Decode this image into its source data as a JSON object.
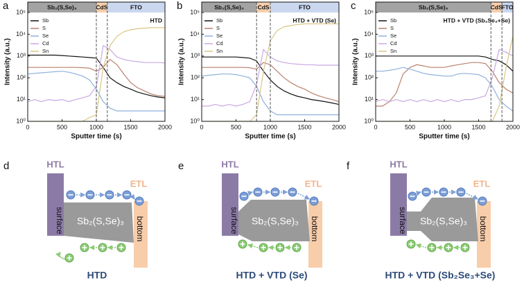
{
  "chart_data": [
    {
      "type": "line",
      "panel": "a",
      "annotation": "HTD",
      "log_y": true,
      "legend": "upper left",
      "xlabel": "Sputter time (s)",
      "ylabel": "Intensity (a.u.)",
      "regions": [
        {
          "label": "Sb₂(S,Se)₃",
          "start": 0,
          "end": 1000,
          "color": "#a3a3a3"
        },
        {
          "label": "CdS",
          "start": 1000,
          "end": 1160,
          "color": "#f6cfae"
        },
        {
          "label": "FTO",
          "start": 1160,
          "end": 2000,
          "color": "#cad7ef"
        }
      ],
      "xlim": [
        0,
        2000
      ],
      "xticks": [
        0,
        500,
        1000,
        1500,
        2000
      ],
      "ylim": [
        1,
        300000
      ],
      "yticks": [
        {
          "value": 1,
          "label": "10⁰"
        },
        {
          "value": 10,
          "label": "10¹"
        },
        {
          "value": 100,
          "label": "10²"
        },
        {
          "value": 1000,
          "label": "10³"
        },
        {
          "value": 10000,
          "label": "10⁴"
        },
        {
          "value": 100000,
          "label": "10⁵"
        }
      ],
      "x": [
        0,
        100,
        200,
        300,
        400,
        500,
        600,
        700,
        800,
        900,
        1000,
        1100,
        1200,
        1300,
        1400,
        1500,
        1600,
        1700,
        1800,
        1900,
        2000
      ],
      "series": [
        {
          "name": "Sb",
          "color": "#111111",
          "values": [
            1100,
            1100,
            1100,
            1100,
            1100,
            1050,
            1000,
            950,
            900,
            850,
            800,
            300,
            100,
            60,
            40,
            30,
            22,
            18,
            15,
            13,
            12
          ]
        },
        {
          "name": "S",
          "color": "#b9806c",
          "values": [
            300,
            300,
            300,
            300,
            300,
            300,
            300,
            300,
            290,
            280,
            200,
            300,
            700,
            400,
            150,
            60,
            35,
            25,
            18,
            15,
            14
          ]
        },
        {
          "name": "Se",
          "color": "#8fb0dc",
          "values": [
            150,
            160,
            170,
            180,
            190,
            200,
            180,
            150,
            120,
            80,
            30,
            8,
            4,
            3,
            3,
            3,
            3,
            3,
            3,
            3,
            3
          ]
        },
        {
          "name": "Cd",
          "color": "#c8a8e2",
          "values": [
            8,
            10,
            8,
            10,
            9,
            10,
            8,
            10,
            12,
            15,
            40,
            3000,
            2000,
            900,
            700,
            600,
            550,
            500,
            500,
            500,
            480
          ]
        },
        {
          "name": "Sn",
          "color": "#d8c684",
          "values": [
            1,
            1,
            1,
            1,
            1,
            1,
            1,
            1,
            1,
            1.5,
            2,
            300,
            3000,
            8000,
            13000,
            16000,
            18000,
            19000,
            20000,
            20000,
            20000
          ]
        }
      ]
    },
    {
      "type": "line",
      "panel": "b",
      "annotation": "HTD + VTD (Se)",
      "log_y": true,
      "legend": "upper left",
      "xlabel": "Sputter time (s)",
      "ylabel": "Intensity (a.u.)",
      "regions": [
        {
          "label": "Sb₂(S,Se)₃",
          "start": 0,
          "end": 800,
          "color": "#a3a3a3"
        },
        {
          "label": "CdS",
          "start": 800,
          "end": 1000,
          "color": "#f6cfae"
        },
        {
          "label": "FTO",
          "start": 1000,
          "end": 2000,
          "color": "#cad7ef"
        }
      ],
      "xlim": [
        0,
        2000
      ],
      "xticks": [
        0,
        500,
        1000,
        1500,
        2000
      ],
      "ylim": [
        1,
        300000
      ],
      "yticks": [
        {
          "value": 1,
          "label": "10⁰"
        },
        {
          "value": 10,
          "label": "10¹"
        },
        {
          "value": 100,
          "label": "10²"
        },
        {
          "value": 1000,
          "label": "10³"
        },
        {
          "value": 10000,
          "label": "10⁴"
        },
        {
          "value": 100000,
          "label": "10⁵"
        }
      ],
      "x": [
        0,
        100,
        200,
        300,
        400,
        500,
        600,
        700,
        800,
        900,
        1000,
        1100,
        1200,
        1300,
        1400,
        1500,
        1600,
        1700,
        1800,
        1900,
        2000
      ],
      "series": [
        {
          "name": "Sb",
          "color": "#111111",
          "values": [
            900,
            900,
            900,
            900,
            900,
            900,
            850,
            800,
            600,
            200,
            80,
            40,
            25,
            18,
            14,
            12,
            10,
            9,
            8,
            7,
            6
          ]
        },
        {
          "name": "S",
          "color": "#b9806c",
          "values": [
            300,
            300,
            300,
            300,
            300,
            300,
            300,
            290,
            250,
            500,
            400,
            200,
            100,
            60,
            40,
            30,
            20,
            15,
            12,
            10,
            8
          ]
        },
        {
          "name": "Se",
          "color": "#8fb0dc",
          "values": [
            120,
            130,
            140,
            150,
            150,
            140,
            120,
            100,
            40,
            8,
            3,
            2,
            2,
            2,
            2,
            2,
            2,
            2,
            2,
            2,
            2
          ]
        },
        {
          "name": "Cd",
          "color": "#c8a8e2",
          "values": [
            5,
            5,
            6,
            5,
            6,
            5,
            6,
            8,
            50,
            2000,
            900,
            600,
            500,
            450,
            420,
            400,
            400,
            380,
            380,
            380,
            380
          ]
        },
        {
          "name": "Sn",
          "color": "#d8c684",
          "values": [
            1,
            1,
            1,
            1,
            1,
            1,
            1,
            1,
            2,
            200,
            5000,
            15000,
            22000,
            25000,
            28000,
            30000,
            30000,
            30000,
            30000,
            30000,
            30000
          ]
        }
      ]
    },
    {
      "type": "line",
      "panel": "c",
      "annotation": "HTD + VTD (Sb₂Se₃+Se)",
      "log_y": true,
      "legend": "upper left",
      "xlabel": "Sputter time (s)",
      "ylabel": "Intensity (a.u.)",
      "regions": [
        {
          "label": "Sb₂(S,Se)₃",
          "start": 0,
          "end": 1680,
          "color": "#a3a3a3"
        },
        {
          "label": "CdS",
          "start": 1680,
          "end": 1840,
          "color": "#f6cfae"
        },
        {
          "label": "FTO",
          "start": 1840,
          "end": 2000,
          "color": "#cad7ef"
        }
      ],
      "xlim": [
        0,
        2000
      ],
      "xticks": [
        0,
        500,
        1000,
        1500,
        2000
      ],
      "ylim": [
        1,
        300000
      ],
      "yticks": [
        {
          "value": 1,
          "label": "10⁰"
        },
        {
          "value": 10,
          "label": "10¹"
        },
        {
          "value": 100,
          "label": "10²"
        },
        {
          "value": 1000,
          "label": "10³"
        },
        {
          "value": 10000,
          "label": "10⁴"
        },
        {
          "value": 100000,
          "label": "10⁵"
        }
      ],
      "x": [
        0,
        100,
        200,
        300,
        400,
        500,
        600,
        700,
        800,
        900,
        1000,
        1100,
        1200,
        1300,
        1400,
        1500,
        1600,
        1700,
        1800,
        1900,
        2000
      ],
      "series": [
        {
          "name": "Sb",
          "color": "#111111",
          "values": [
            1000,
            1000,
            1000,
            1000,
            1000,
            1000,
            1000,
            1000,
            1000,
            1000,
            1000,
            1000,
            1000,
            1000,
            1000,
            1000,
            900,
            700,
            600,
            400,
            200
          ]
        },
        {
          "name": "S",
          "color": "#b9806c",
          "values": [
            5,
            5,
            8,
            20,
            150,
            300,
            400,
            350,
            300,
            300,
            300,
            350,
            400,
            450,
            500,
            500,
            450,
            200,
            60,
            30,
            20
          ]
        },
        {
          "name": "Se",
          "color": "#8fb0dc",
          "values": [
            200,
            200,
            220,
            250,
            300,
            250,
            200,
            160,
            140,
            130,
            120,
            120,
            150,
            160,
            150,
            140,
            100,
            40,
            10,
            5,
            3
          ]
        },
        {
          "name": "Cd",
          "color": "#c8a8e2",
          "values": [
            8,
            10,
            8,
            10,
            8,
            10,
            8,
            10,
            8,
            10,
            8,
            10,
            8,
            10,
            10,
            12,
            15,
            100,
            2000,
            1500,
            1000
          ]
        },
        {
          "name": "Sn",
          "color": "#d8c684",
          "values": [
            1,
            1,
            1,
            1,
            1,
            1,
            1,
            1,
            1,
            1,
            1,
            1,
            1,
            1,
            1,
            1,
            1,
            1,
            5,
            300,
            8000
          ]
        }
      ]
    }
  ],
  "diagrams": [
    {
      "panel": "d",
      "htl": "HTL",
      "etl": "ETL",
      "surface": "surface",
      "bottom": "bottom",
      "absorber": "Sb₂(S,Se)₃",
      "caption": "HTD"
    },
    {
      "panel": "e",
      "htl": "HTL",
      "etl": "ETL",
      "surface": "surface",
      "bottom": "bottom",
      "absorber": "Sb₂(S,Se)₃",
      "caption": "HTD + VTD (Se)"
    },
    {
      "panel": "f",
      "htl": "HTL",
      "etl": "ETL",
      "surface": "surface",
      "bottom": "bottom",
      "absorber": "Sb₂(S,Se)₃",
      "caption": "HTD + VTD (Sb₂Se₃+Se)"
    }
  ]
}
